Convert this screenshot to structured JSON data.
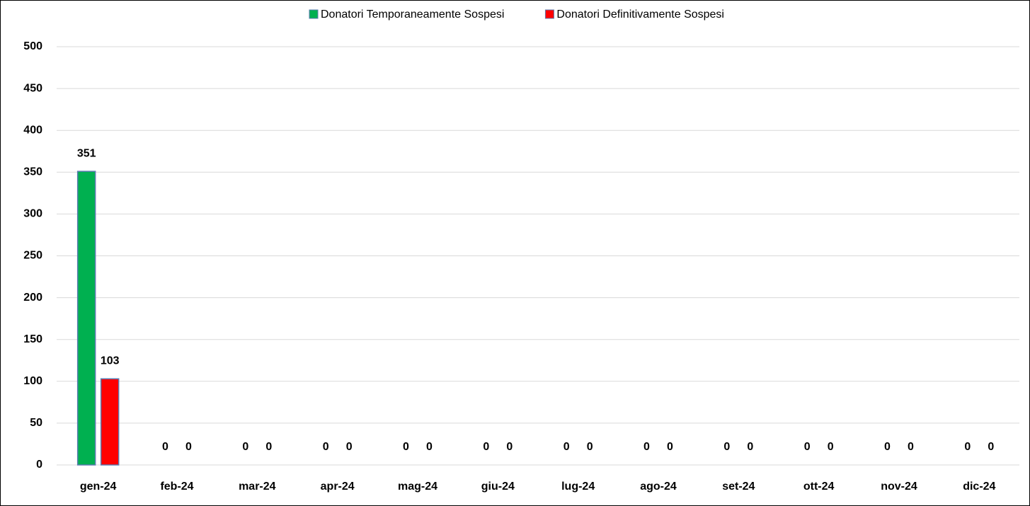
{
  "chart_data": {
    "type": "bar",
    "categories": [
      "gen-24",
      "feb-24",
      "mar-24",
      "apr-24",
      "mag-24",
      "giu-24",
      "lug-24",
      "ago-24",
      "set-24",
      "ott-24",
      "nov-24",
      "dic-24"
    ],
    "series": [
      {
        "name": "Donatori Temporaneamente Sospesi",
        "color": "#00b050",
        "values": [
          351,
          0,
          0,
          0,
          0,
          0,
          0,
          0,
          0,
          0,
          0,
          0
        ]
      },
      {
        "name": "Donatori Definitivamente Sospesi",
        "color": "#ff0000",
        "values": [
          103,
          0,
          0,
          0,
          0,
          0,
          0,
          0,
          0,
          0,
          0,
          0
        ]
      }
    ],
    "ylim": [
      0,
      500
    ],
    "yticks": [
      0,
      50,
      100,
      150,
      200,
      250,
      300,
      350,
      400,
      450,
      500
    ],
    "grid": true,
    "legend": "top"
  }
}
